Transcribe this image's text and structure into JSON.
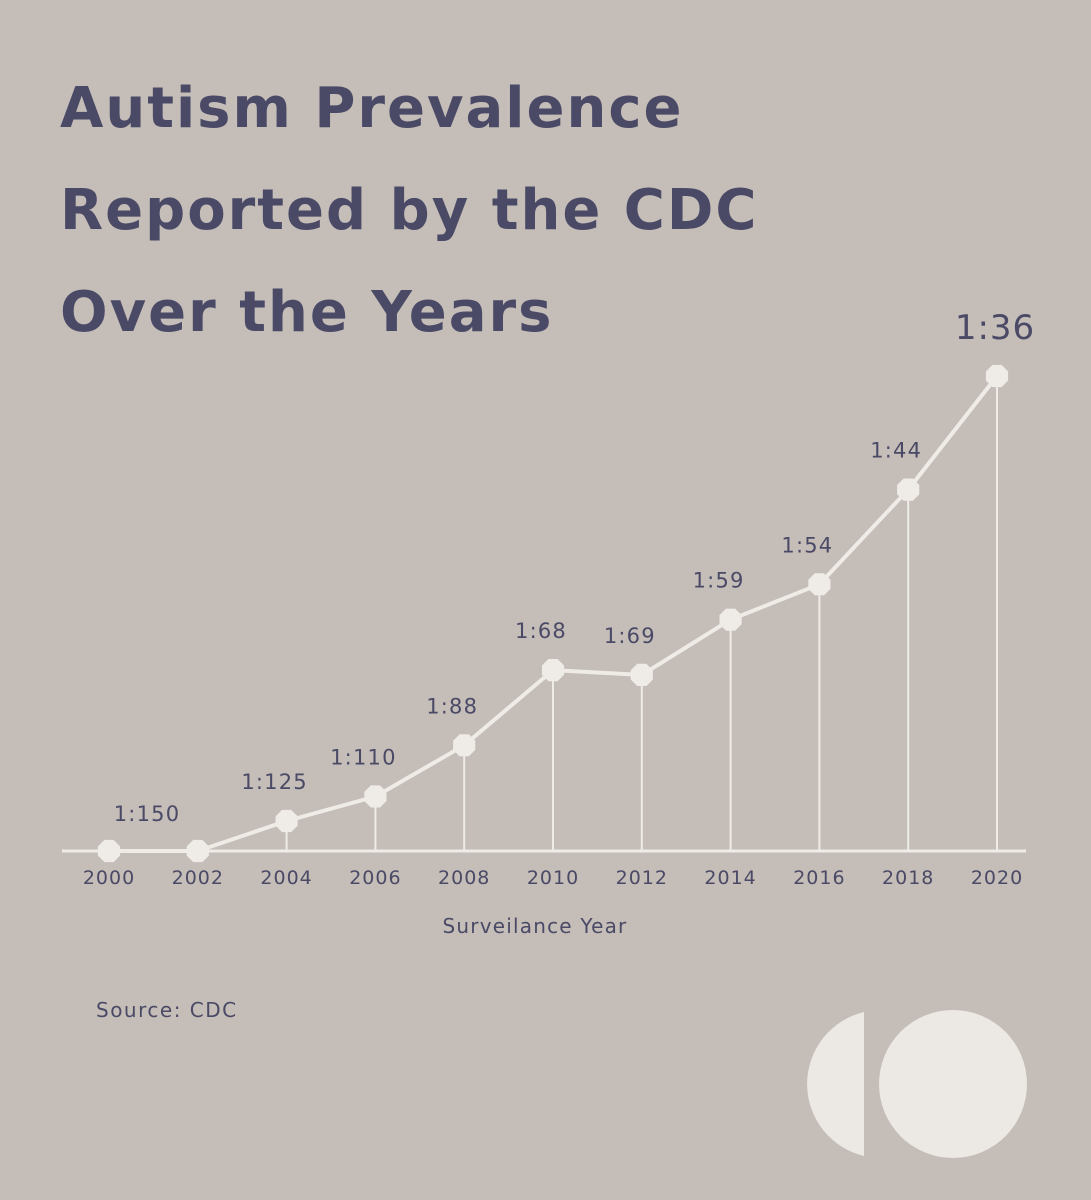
{
  "title_lines": [
    "Autism Prevalence",
    "Reported by the CDC",
    "Over the Years"
  ],
  "source": "Source: CDC",
  "chart_data": {
    "type": "line",
    "x": [
      2000,
      2002,
      2004,
      2006,
      2008,
      2010,
      2012,
      2014,
      2016,
      2018,
      2020
    ],
    "x_tick_labels": [
      "2000",
      "2002",
      "2004",
      "2006",
      "2008",
      "2010",
      "2012",
      "2014",
      "2016",
      "2018",
      "2020"
    ],
    "prevalence_one_in": [
      150,
      150,
      125,
      110,
      88,
      68,
      69,
      59,
      54,
      44,
      36
    ],
    "point_labels": [
      "1:150",
      "",
      "1:125",
      "1:110",
      "1:88",
      "1:68",
      "1:69",
      "1:59",
      "1:54",
      "1:44",
      "1:36"
    ],
    "xlabel": "Surveilance Year",
    "ylabel": "",
    "y_axis_shown": false,
    "grid": false,
    "drop_lines": true,
    "colors": {
      "background": "#c4bdb8",
      "line": "#efebe7",
      "text": "#4b4a66"
    }
  }
}
